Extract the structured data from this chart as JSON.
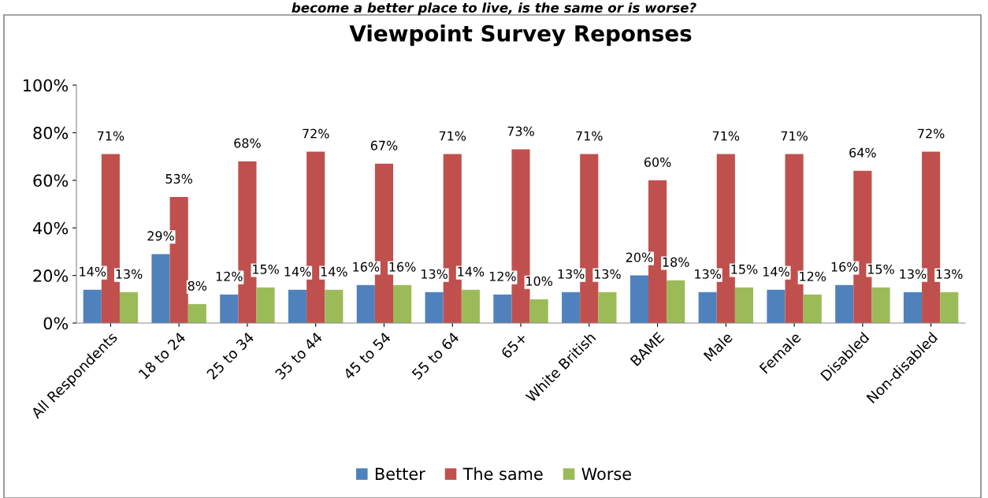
{
  "chart_data": {
    "type": "bar",
    "title": "Viewpoint Survey Reponses",
    "annotations": [
      "become a better place to live, is the same or is worse?"
    ],
    "categories": [
      "All Respondents",
      "18 to 24",
      "25 to 34",
      "35 to 44",
      "45 to 54",
      "55 to 64",
      "65+",
      "White British",
      "BAME",
      "Male",
      "Female",
      "Disabled",
      "Non-disabled"
    ],
    "series": [
      {
        "name": "Better",
        "color": "#4f81bd",
        "values": [
          14,
          29,
          12,
          14,
          16,
          13,
          12,
          13,
          20,
          13,
          14,
          16,
          13
        ],
        "value_labels": [
          "14%",
          "29%",
          "12%",
          "14%",
          "16%",
          "13%",
          "12%",
          "13%",
          "20%",
          "13%",
          "14%",
          "16%",
          "13%"
        ]
      },
      {
        "name": "The same",
        "color": "#c0504d",
        "values": [
          71,
          53,
          68,
          72,
          67,
          71,
          73,
          71,
          60,
          71,
          71,
          64,
          72
        ],
        "value_labels": [
          "71%",
          "53%",
          "68%",
          "72%",
          "67%",
          "71%",
          "73%",
          "71%",
          "60%",
          "71%",
          "71%",
          "64%",
          "72%"
        ]
      },
      {
        "name": "Worse",
        "color": "#9bbb59",
        "values": [
          13,
          8,
          15,
          14,
          16,
          14,
          10,
          13,
          18,
          15,
          12,
          15,
          13
        ],
        "value_labels": [
          "13%",
          "8%",
          "15%",
          "14%",
          "16%",
          "14%",
          "10%",
          "13%",
          "18%",
          "15%",
          "12%",
          "15%",
          "13%"
        ]
      }
    ],
    "ylim": [
      0,
      100
    ],
    "yticks": [
      {
        "value": 0,
        "label": "0%"
      },
      {
        "value": 20,
        "label": "20%"
      },
      {
        "value": 40,
        "label": "40%"
      },
      {
        "value": 60,
        "label": "60%"
      },
      {
        "value": 80,
        "label": "80%"
      },
      {
        "value": 100,
        "label": "100%"
      }
    ],
    "grid": false,
    "legend": "bottom"
  }
}
